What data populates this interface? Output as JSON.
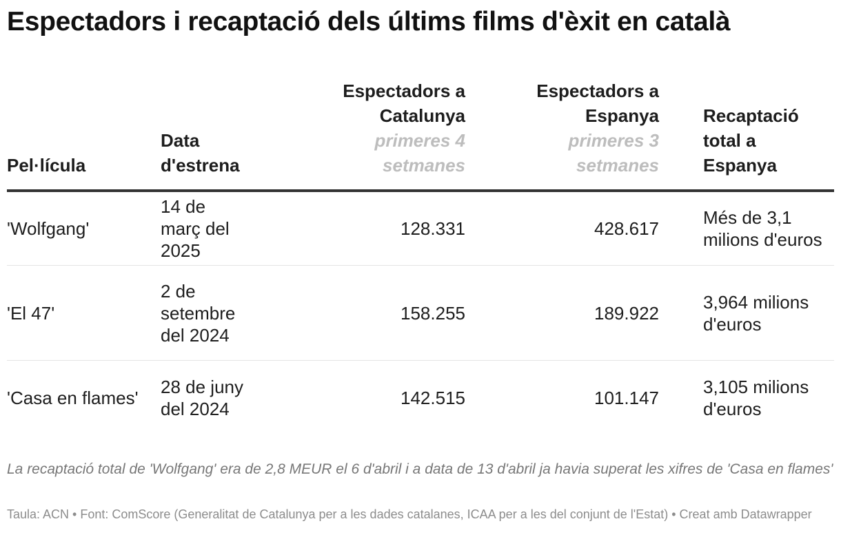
{
  "title": "Espectadors i recaptació dels últims films d'èxit en català",
  "chart_data": {
    "type": "table",
    "title": "Espectadors i recaptació dels últims films d'èxit en català",
    "columns": [
      {
        "label": "Pel·lícula",
        "sublabel": ""
      },
      {
        "label": "Data d'estrena",
        "sublabel": ""
      },
      {
        "label": "Espectadors a Catalunya",
        "sublabel": "primeres 4 setmanes"
      },
      {
        "label": "Espectadors a Espanya",
        "sublabel": "primeres 3 setmanes"
      },
      {
        "label": "Recaptació total a Espanya",
        "sublabel": ""
      }
    ],
    "rows": [
      [
        "'Wolfgang'",
        "14 de març del 2025",
        "128.331",
        "428.617",
        "Més de 3,1 milions d'euros"
      ],
      [
        "'El 47'",
        "2 de setembre del 2024",
        "158.255",
        "189.922",
        "3,964 milions d'euros"
      ],
      [
        "'Casa en flames'",
        "28 de juny del 2024",
        "142.515",
        "101.147",
        "3,105 milions d'euros"
      ]
    ],
    "values": {
      "espectadors_catalunya": [
        128331,
        158255,
        142515
      ],
      "espectadors_espanya": [
        428617,
        189922,
        101147
      ]
    }
  },
  "notes": "La recaptació total de 'Wolfgang' era de 2,8 MEUR el 6 d'abril i a data de 13 d'abril ja havia superat les xifres de 'Casa en flames'",
  "footer": "Taula: ACN • Font: ComScore (Generalitat de Catalunya per a les dades catalanes, ICAA per a les del conjunt de l'Estat) • Creat amb Datawrapper"
}
